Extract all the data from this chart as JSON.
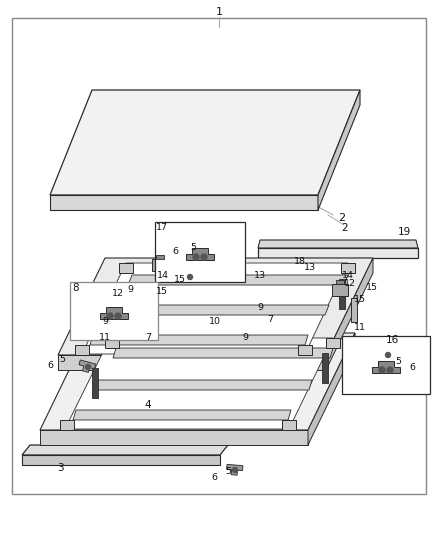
{
  "bg_color": "#ffffff",
  "line_color": "#2a2a2a",
  "gray": "#888888",
  "lgray": "#aaaaaa",
  "fig_width": 4.38,
  "fig_height": 5.33,
  "dpi": 100
}
